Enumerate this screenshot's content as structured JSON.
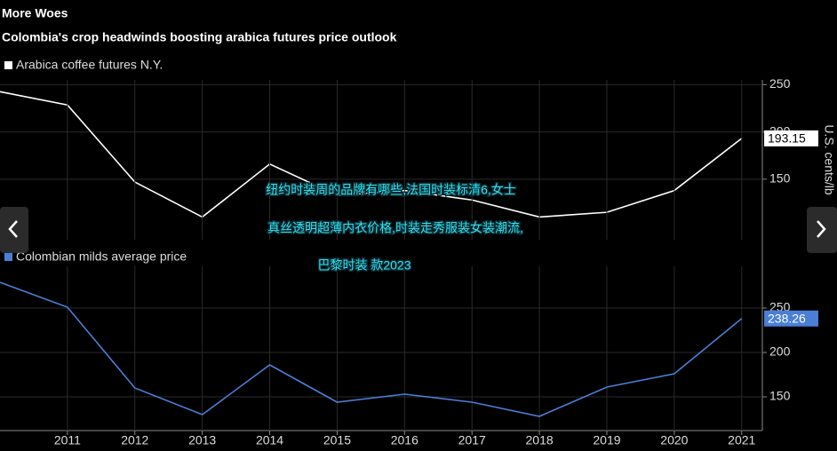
{
  "chart_data": [
    {
      "type": "line",
      "title": "More Woes",
      "subtitle": "Colombia's crop headwinds boosting arabica futures price outlook",
      "y_label": "U.S. cents/lb",
      "x": [
        2010,
        2011,
        2012,
        2013,
        2014,
        2015,
        2016,
        2017,
        2018,
        2019,
        2020,
        2021
      ],
      "series": [
        {
          "name": "Arabica coffee futures N.Y.",
          "color": "#ffffff",
          "values": [
            242.5,
            228.5,
            147,
            110,
            166,
            133,
            138,
            128,
            110,
            115,
            138,
            193.15
          ]
        }
      ],
      "xlim": [
        2010,
        2021.28
      ],
      "ylim": [
        86,
        255
      ],
      "yticks": [
        150,
        200,
        250
      ],
      "grid": true
    },
    {
      "type": "line",
      "x": [
        2010,
        2011,
        2012,
        2013,
        2014,
        2015,
        2016,
        2017,
        2018,
        2019,
        2020,
        2021
      ],
      "series": [
        {
          "name": "Colombian milds average price",
          "color": "#4a7fd6",
          "values": [
            279,
            251,
            160,
            130,
            186,
            144,
            153,
            144,
            128,
            161,
            176,
            238.26
          ]
        }
      ],
      "xlim": [
        2010,
        2021.28
      ],
      "xticks": [
        2011,
        2012,
        2013,
        2014,
        2015,
        2016,
        2017,
        2018,
        2019,
        2020,
        2021
      ],
      "ylim": [
        112,
        297
      ],
      "yticks": [
        150,
        200,
        250
      ],
      "grid": true
    }
  ],
  "overlay": {
    "lines": [
      "纽约时装周的品牌有哪些,法国时装标清6,女士",
      "真丝透明超薄内衣价格,时装走秀服装女装潮流,",
      "巴黎时装 款2023"
    ]
  }
}
